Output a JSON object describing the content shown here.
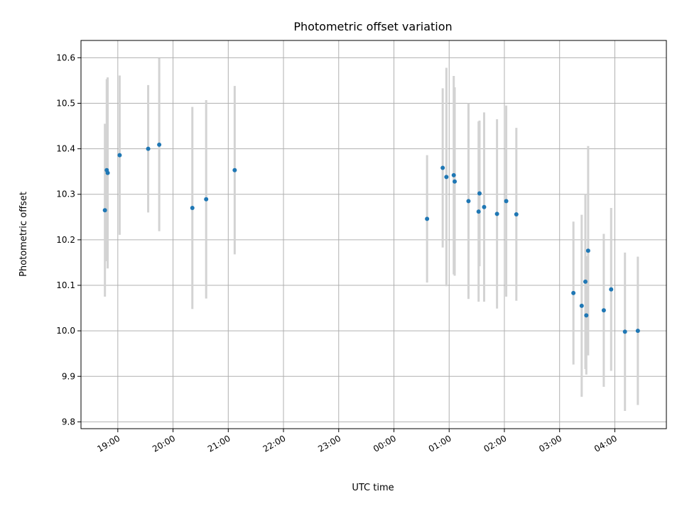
{
  "chart_data": {
    "type": "scatter",
    "title": "Photometric offset variation",
    "xlabel": "UTC time",
    "ylabel": "Photometric offset",
    "grid": true,
    "x_is_time": true,
    "xlim": [
      "18:20",
      "04:56"
    ],
    "ylim": [
      9.785,
      10.638
    ],
    "xticks": [
      "19:00",
      "20:00",
      "21:00",
      "22:00",
      "23:00",
      "00:00",
      "01:00",
      "02:00",
      "03:00",
      "04:00"
    ],
    "yticks": [
      9.8,
      9.9,
      10.0,
      10.1,
      10.2,
      10.3,
      10.4,
      10.5,
      10.6
    ],
    "ytick_labels": [
      "9.8",
      "9.9",
      "10.0",
      "10.1",
      "10.2",
      "10.3",
      "10.4",
      "10.5",
      "10.6"
    ],
    "colors": {
      "marker": "#1f77b4",
      "errorbar": "#d3d3d3"
    },
    "series": [
      {
        "points": [
          {
            "x": "18:46",
            "y": 10.265,
            "err": 0.19
          },
          {
            "x": "18:48",
            "y": 10.353,
            "err": 0.2
          },
          {
            "x": "18:49",
            "y": 10.347,
            "err": 0.21
          },
          {
            "x": "19:02",
            "y": 10.386,
            "err": 0.175
          },
          {
            "x": "19:33",
            "y": 10.4,
            "err": 0.14
          },
          {
            "x": "19:45",
            "y": 10.409,
            "err": 0.19
          },
          {
            "x": "20:21",
            "y": 10.27,
            "err": 0.222
          },
          {
            "x": "20:36",
            "y": 10.289,
            "err": 0.218
          },
          {
            "x": "21:07",
            "y": 10.353,
            "err": 0.185
          },
          {
            "x": "00:36",
            "y": 10.246,
            "err": 0.14
          },
          {
            "x": "00:53",
            "y": 10.358,
            "err": 0.175
          },
          {
            "x": "00:57",
            "y": 10.338,
            "err": 0.24
          },
          {
            "x": "01:05",
            "y": 10.342,
            "err": 0.218
          },
          {
            "x": "01:06",
            "y": 10.328,
            "err": 0.207
          },
          {
            "x": "01:21",
            "y": 10.285,
            "err": 0.215
          },
          {
            "x": "01:32",
            "y": 10.262,
            "err": 0.198
          },
          {
            "x": "01:33",
            "y": 10.302,
            "err": 0.16
          },
          {
            "x": "01:38",
            "y": 10.272,
            "err": 0.208
          },
          {
            "x": "01:52",
            "y": 10.257,
            "err": 0.208
          },
          {
            "x": "02:02",
            "y": 10.285,
            "err": 0.21
          },
          {
            "x": "02:13",
            "y": 10.256,
            "err": 0.19
          },
          {
            "x": "03:15",
            "y": 10.083,
            "err": 0.157
          },
          {
            "x": "03:24",
            "y": 10.055,
            "err": 0.2
          },
          {
            "x": "03:28",
            "y": 10.108,
            "err": 0.192
          },
          {
            "x": "03:29",
            "y": 10.034,
            "err": 0.13
          },
          {
            "x": "03:31",
            "y": 10.176,
            "err": 0.23
          },
          {
            "x": "03:48",
            "y": 10.045,
            "err": 0.168
          },
          {
            "x": "03:56",
            "y": 10.091,
            "err": 0.179
          },
          {
            "x": "04:11",
            "y": 9.998,
            "err": 0.174
          },
          {
            "x": "04:25",
            "y": 10.0,
            "err": 0.163
          }
        ]
      }
    ]
  }
}
